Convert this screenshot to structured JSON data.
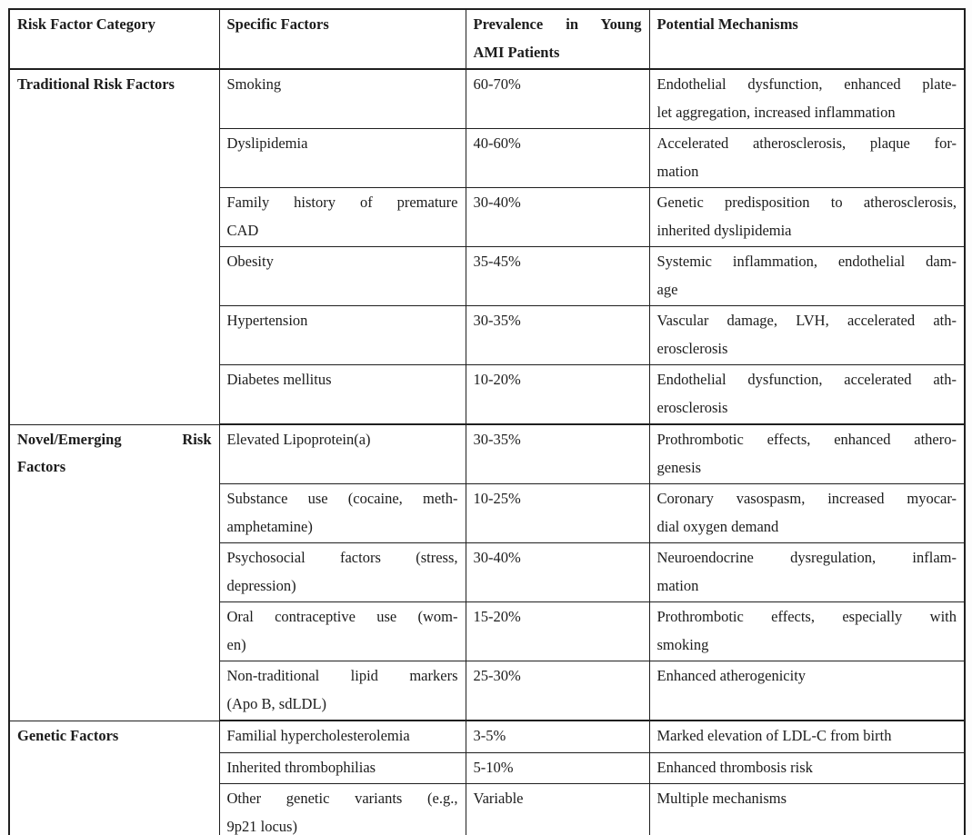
{
  "colors": {
    "border": "#1f1f1f",
    "text": "#1c1c1c",
    "background": "#ffffff"
  },
  "table": {
    "columns": [
      {
        "lines": [
          "Risk Factor Category"
        ]
      },
      {
        "lines": [
          "Specific Factors"
        ]
      },
      {
        "lines": [
          "Prevalence in Young",
          "AMI Patients"
        ]
      },
      {
        "lines": [
          "Potential Mechanisms"
        ]
      }
    ],
    "sections": [
      {
        "category": [
          "Traditional Risk Factors"
        ],
        "rows": [
          {
            "factor": [
              "Smoking"
            ],
            "prevalence": "60-70%",
            "mechanism": [
              "Endothelial dysfunction, enhanced plate-",
              "let aggregation, increased inflammation"
            ]
          },
          {
            "factor": [
              "Dyslipidemia"
            ],
            "prevalence": "40-60%",
            "mechanism": [
              "Accelerated atherosclerosis, plaque for-",
              "mation"
            ]
          },
          {
            "factor": [
              "Family history of premature",
              "CAD"
            ],
            "prevalence": "30-40%",
            "mechanism": [
              "Genetic predisposition to atherosclerosis,",
              "inherited dyslipidemia"
            ]
          },
          {
            "factor": [
              "Obesity"
            ],
            "prevalence": "35-45%",
            "mechanism": [
              "Systemic inflammation, endothelial dam-",
              "age"
            ]
          },
          {
            "factor": [
              "Hypertension"
            ],
            "prevalence": "30-35%",
            "mechanism": [
              "Vascular damage, LVH, accelerated ath-",
              "erosclerosis"
            ]
          },
          {
            "factor": [
              "Diabetes mellitus"
            ],
            "prevalence": "10-20%",
            "mechanism": [
              "Endothelial dysfunction, accelerated ath-",
              "erosclerosis"
            ]
          }
        ]
      },
      {
        "category": [
          "Novel/Emerging Risk",
          "Factors"
        ],
        "rows": [
          {
            "factor": [
              "Elevated Lipoprotein(a)"
            ],
            "prevalence": "30-35%",
            "mechanism": [
              "Prothrombotic effects, enhanced athero-",
              "genesis"
            ]
          },
          {
            "factor": [
              "Substance use (cocaine, meth-",
              "amphetamine)"
            ],
            "prevalence": "10-25%",
            "mechanism": [
              "Coronary vasospasm, increased myocar-",
              "dial oxygen demand"
            ]
          },
          {
            "factor": [
              "Psychosocial factors (stress,",
              "depression)"
            ],
            "prevalence": "30-40%",
            "mechanism": [
              "Neuroendocrine dysregulation, inflam-",
              "mation"
            ]
          },
          {
            "factor": [
              "Oral contraceptive use (wom-",
              "en)"
            ],
            "prevalence": "15-20%",
            "mechanism": [
              "Prothrombotic effects, especially with",
              "smoking"
            ]
          },
          {
            "factor": [
              "Non-traditional lipid markers",
              "(Apo B, sdLDL)"
            ],
            "prevalence": "25-30%",
            "mechanism": [
              "Enhanced atherogenicity"
            ]
          }
        ]
      },
      {
        "category": [
          "Genetic Factors"
        ],
        "rows": [
          {
            "factor": [
              "Familial hypercholesterolemia"
            ],
            "prevalence": "3-5%",
            "mechanism": [
              "Marked elevation of LDL-C from birth"
            ]
          },
          {
            "factor": [
              "Inherited thrombophilias"
            ],
            "prevalence": "5-10%",
            "mechanism": [
              "Enhanced thrombosis risk"
            ]
          },
          {
            "factor": [
              "Other genetic variants (e.g.,",
              "9p21 locus)"
            ],
            "prevalence": "Variable",
            "mechanism": [
              "Multiple mechanisms"
            ]
          }
        ]
      }
    ]
  }
}
